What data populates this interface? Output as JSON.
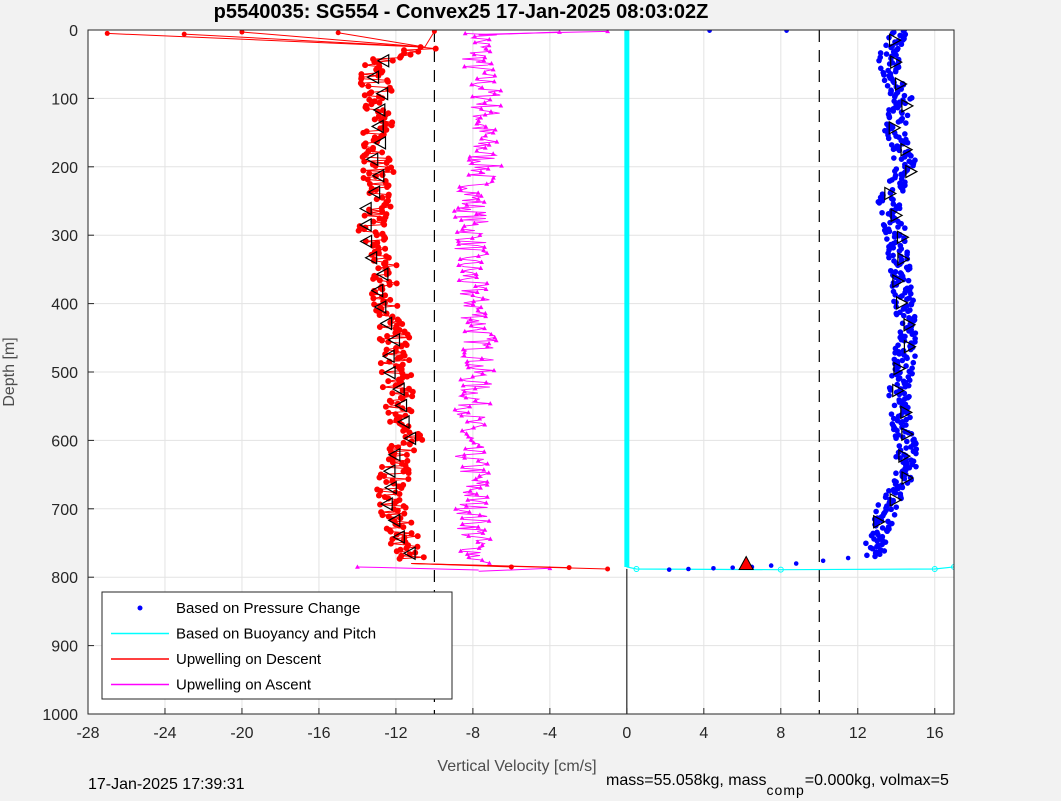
{
  "chart_data": {
    "type": "scatter",
    "title": "p5540035: SG554 - Convex25 17-Jan-2025 08:03:02Z",
    "xlabel": "Vertical Velocity [cm/s]",
    "ylabel": "Depth [m]",
    "xlim": [
      -28,
      17
    ],
    "ylim": [
      0,
      1000
    ],
    "y_reversed": true,
    "xticks": [
      "-28",
      "-24",
      "-20",
      "-16",
      "-12",
      "-8",
      "-4",
      "0",
      "4",
      "8",
      "12",
      "16"
    ],
    "yticks": [
      "0",
      "100",
      "200",
      "300",
      "400",
      "500",
      "600",
      "700",
      "800",
      "900",
      "1000"
    ],
    "grid": true,
    "legend_position": "bottom-left",
    "reference_lines": {
      "dashed_x": [
        -10,
        10
      ],
      "solid_vertical_below_800_x": 0
    },
    "series": [
      {
        "name": "Based on Pressure Change",
        "color": "#0000ff",
        "profile": [
          [
            0,
            14.0
          ],
          [
            50,
            13.6
          ],
          [
            100,
            14.3
          ],
          [
            150,
            13.9
          ],
          [
            200,
            14.6
          ],
          [
            250,
            13.6
          ],
          [
            300,
            14.0
          ],
          [
            350,
            14.2
          ],
          [
            400,
            14.4
          ],
          [
            450,
            14.6
          ],
          [
            500,
            14.3
          ],
          [
            550,
            14.1
          ],
          [
            600,
            14.5
          ],
          [
            650,
            14.5
          ],
          [
            700,
            13.5
          ],
          [
            750,
            12.9
          ],
          [
            770,
            12.8
          ]
        ],
        "tail": [
          [
            772,
            11.5
          ],
          [
            776,
            10.2
          ],
          [
            780,
            8.8
          ],
          [
            783,
            7.5
          ],
          [
            785,
            6.5
          ],
          [
            786,
            5.5
          ],
          [
            787,
            4.5
          ],
          [
            788,
            3.2
          ],
          [
            789,
            2.2
          ],
          [
            1,
            4.3
          ],
          [
            1,
            8.3
          ]
        ]
      },
      {
        "name": "Based on Buoyancy and Pitch",
        "color": "#00ffff",
        "profile": [
          [
            0,
            0
          ],
          [
            785,
            0
          ]
        ],
        "tail": [
          [
            788,
            0.5
          ],
          [
            789,
            8
          ],
          [
            788,
            16
          ],
          [
            785,
            17
          ]
        ]
      },
      {
        "name": "Upwelling on Descent",
        "color": "#ff0000",
        "profile": [
          [
            25,
            -10.3
          ],
          [
            50,
            -13.5
          ],
          [
            100,
            -12.8
          ],
          [
            150,
            -13.0
          ],
          [
            200,
            -12.9
          ],
          [
            250,
            -13.0
          ],
          [
            300,
            -13.2
          ],
          [
            350,
            -12.6
          ],
          [
            400,
            -12.5
          ],
          [
            450,
            -12.1
          ],
          [
            500,
            -12.0
          ],
          [
            550,
            -11.8
          ],
          [
            600,
            -11.4
          ],
          [
            650,
            -12.1
          ],
          [
            700,
            -12.3
          ],
          [
            750,
            -11.5
          ],
          [
            775,
            -11.0
          ]
        ],
        "spikes": [
          [
            5,
            -27.0
          ],
          [
            3,
            -20.0
          ],
          [
            4,
            -15.0
          ],
          [
            2,
            -10.0
          ],
          [
            6,
            -23.0
          ],
          [
            785,
            -6.0
          ],
          [
            786,
            -3.0
          ],
          [
            788,
            -1.0
          ]
        ]
      },
      {
        "name": "Upwelling on Ascent",
        "color": "#ff00ff",
        "profile": [
          [
            5,
            -7.5
          ],
          [
            50,
            -7.8
          ],
          [
            100,
            -7.2
          ],
          [
            150,
            -7.6
          ],
          [
            200,
            -7.4
          ],
          [
            250,
            -8.1
          ],
          [
            300,
            -8.0
          ],
          [
            350,
            -8.3
          ],
          [
            400,
            -7.9
          ],
          [
            450,
            -7.6
          ],
          [
            500,
            -7.8
          ],
          [
            550,
            -8.0
          ],
          [
            600,
            -8.4
          ],
          [
            650,
            -7.9
          ],
          [
            700,
            -8.0
          ],
          [
            750,
            -7.9
          ],
          [
            780,
            -7.7
          ]
        ],
        "spikes": [
          [
            3,
            -3.5
          ],
          [
            2,
            -1.0
          ],
          [
            785,
            -14.0
          ],
          [
            787,
            -4.0
          ]
        ]
      }
    ],
    "markers": {
      "red_triangle": {
        "x": 6.2,
        "y": 780
      }
    }
  },
  "footer": {
    "timestamp": "17-Jan-2025 17:39:31",
    "mass_prefix": "mass=55.058kg, mass",
    "mass_sub": "comp",
    "mass_suffix": "=0.000kg, volmax=5"
  }
}
